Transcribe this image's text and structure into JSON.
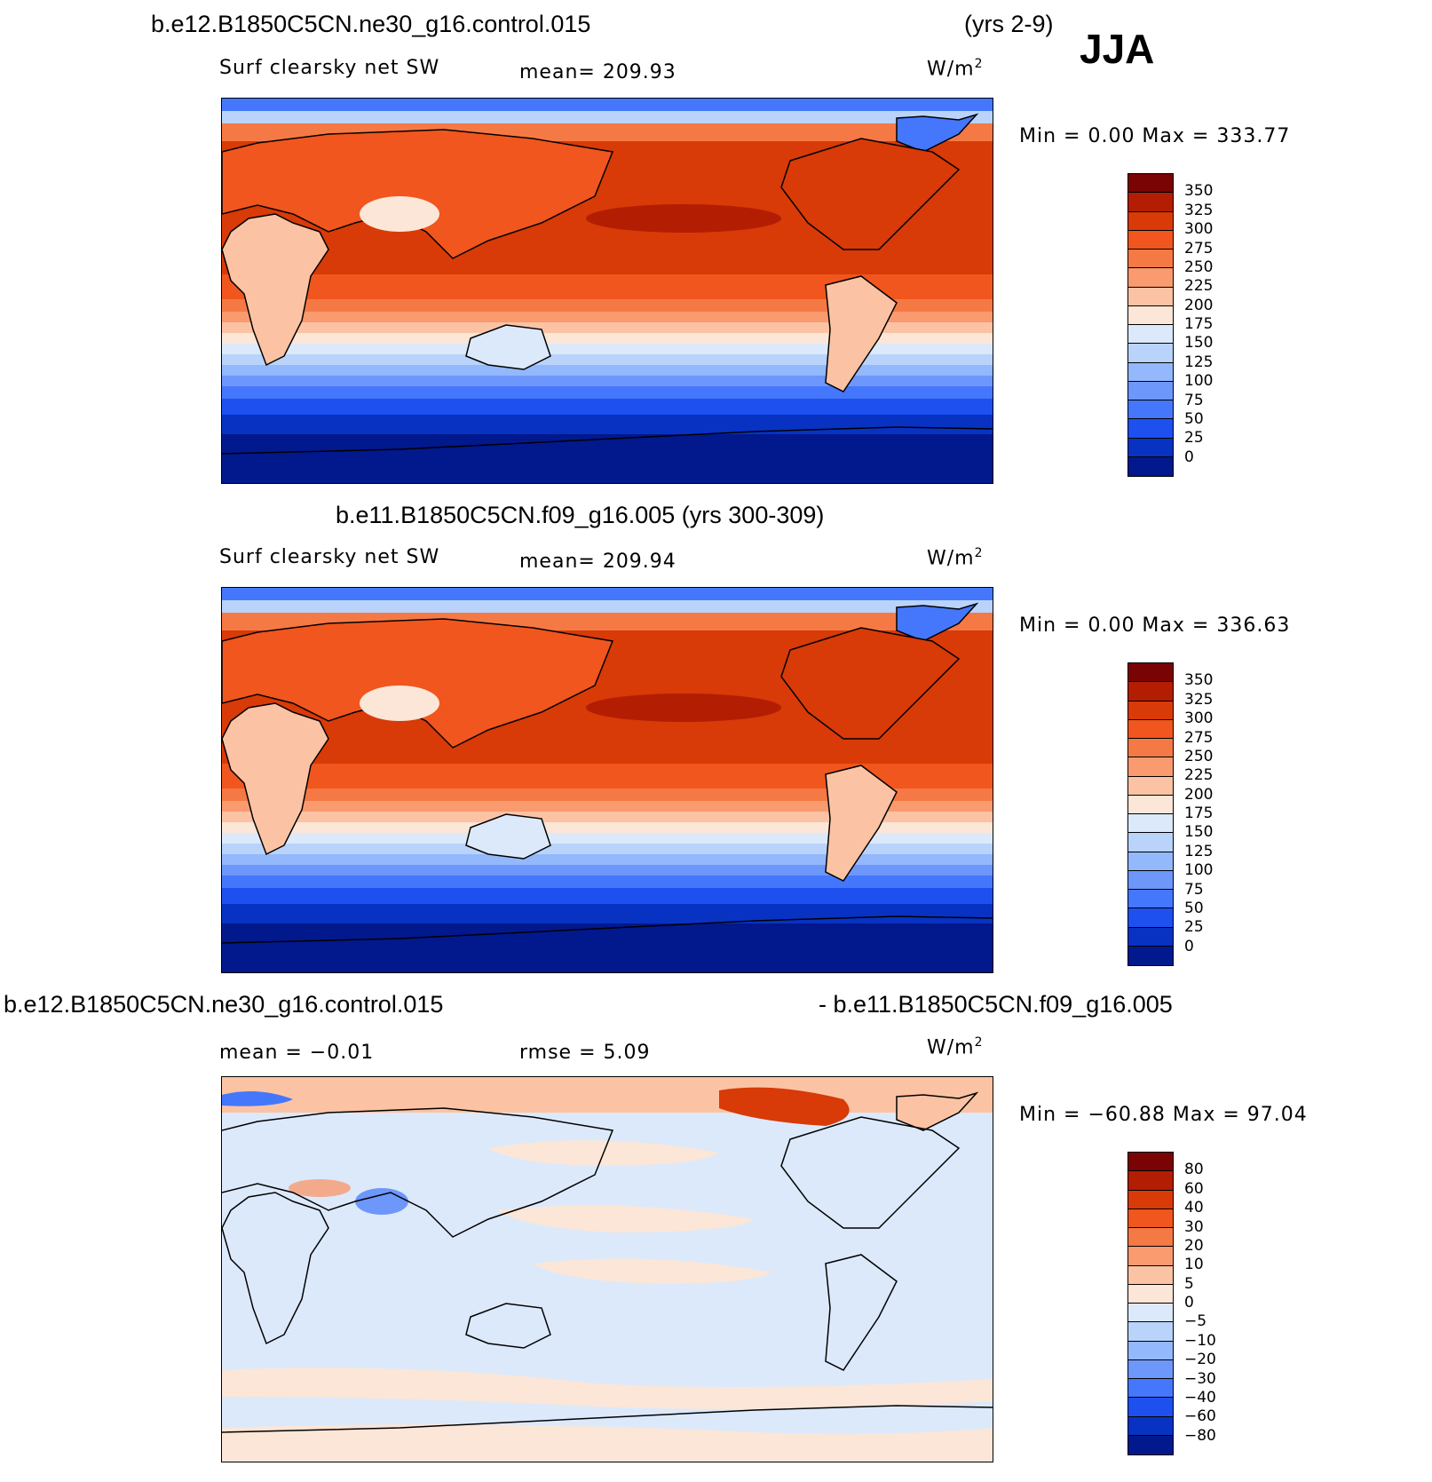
{
  "panel1": {
    "title_left": "b.e12.B1850C5CN.ne30_g16.control.015",
    "title_right": "(yrs 2-9)",
    "season": "JJA",
    "variable": "Surf clearsky net SW",
    "mean": "mean= 209.93",
    "units": "W/m",
    "units_sup": "2",
    "minmax": "Min =    0.00 Max = 333.77"
  },
  "panel2": {
    "title": "b.e11.B1850C5CN.f09_g16.005 (yrs 300-309)",
    "variable": "Surf clearsky net SW",
    "mean": "mean= 209.94",
    "units": "W/m",
    "units_sup": "2",
    "minmax": "Min =    0.00 Max = 336.63"
  },
  "panel3": {
    "title_left": "b.e12.B1850C5CN.ne30_g16.control.015",
    "title_right": "- b.e11.B1850C5CN.f09_g16.005",
    "mean": "mean =   −0.01",
    "rmse": "rmse =    5.09",
    "units": "W/m",
    "units_sup": "2",
    "minmax": "Min = −60.88 Max =  97.04"
  },
  "colorbar_abs": {
    "labels": [
      "350",
      "325",
      "300",
      "275",
      "250",
      "225",
      "200",
      "175",
      "150",
      "125",
      "100",
      "75",
      "50",
      "25",
      "0"
    ],
    "colors": [
      "#7a0403",
      "#b31e02",
      "#d83a08",
      "#f0561d",
      "#f57945",
      "#f99a6f",
      "#fbc3a4",
      "#fbe6d7",
      "#dce9fb",
      "#b9d3fb",
      "#93b8fb",
      "#6d97fb",
      "#4477fb",
      "#1e50ef",
      "#0832c2",
      "#02188d"
    ]
  },
  "colorbar_diff": {
    "labels": [
      "80",
      "60",
      "40",
      "30",
      "20",
      "10",
      "5",
      "0",
      "−5",
      "−10",
      "−20",
      "−30",
      "−40",
      "−60",
      "−80"
    ],
    "colors": [
      "#7a0403",
      "#b31e02",
      "#d83a08",
      "#f0561d",
      "#f57945",
      "#f99a6f",
      "#fbc3a4",
      "#fbe6d7",
      "#dce9fb",
      "#b9d3fb",
      "#93b8fb",
      "#6d97fb",
      "#4477fb",
      "#1e50ef",
      "#0832c2",
      "#02188d"
    ]
  }
}
